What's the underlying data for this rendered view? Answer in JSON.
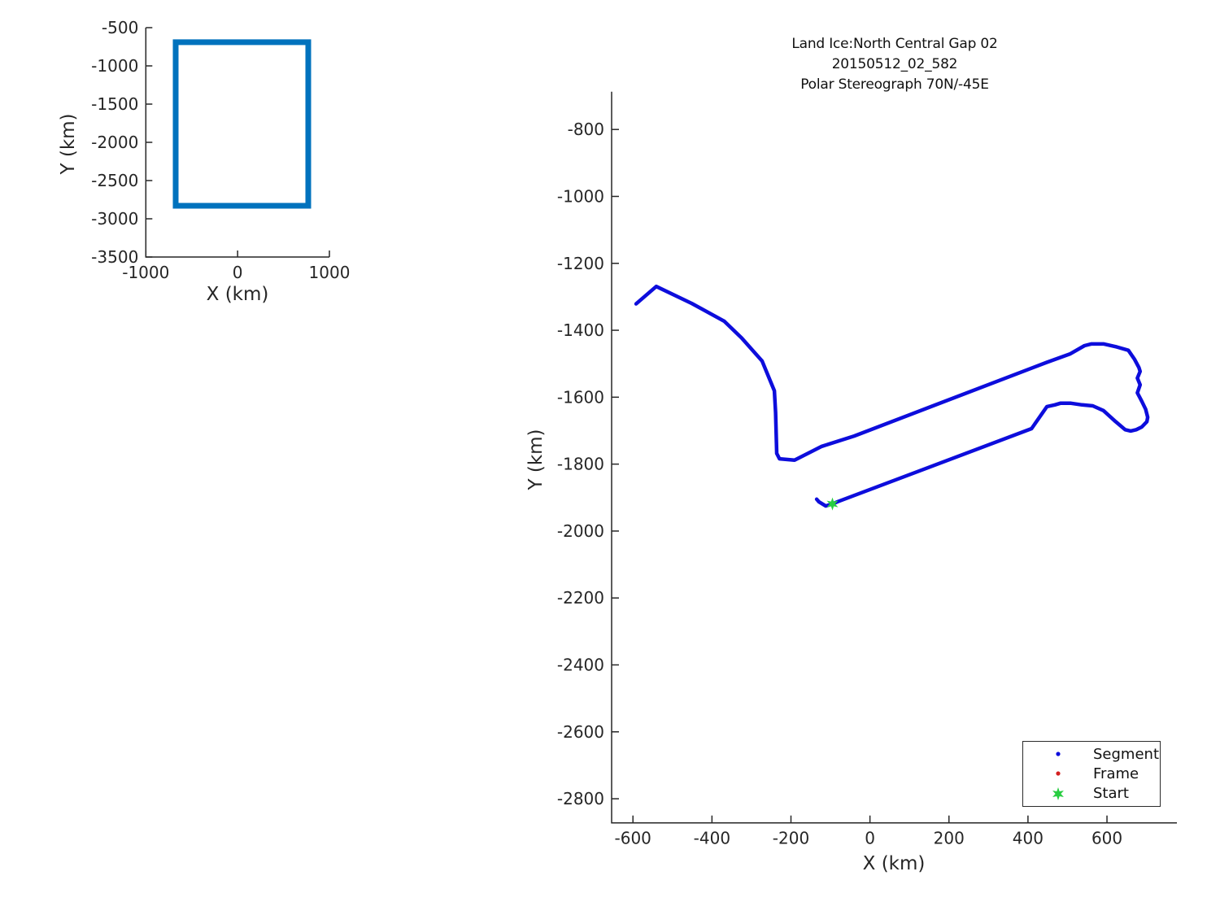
{
  "figure": {
    "background": "#ffffff",
    "spine_color": "#262626",
    "text_color": "#262626"
  },
  "chart_data": [
    {
      "id": "overview",
      "type": "line",
      "title": "",
      "xlabel": "X (km)",
      "ylabel": "Y (km)",
      "xlim": [
        -1000,
        1000
      ],
      "ylim": [
        -3500,
        -500
      ],
      "xticks": [
        -1000,
        0,
        1000
      ],
      "yticks": [
        -500,
        -1000,
        -1500,
        -2000,
        -2500,
        -3000,
        -3500
      ],
      "grid": false,
      "series": [
        {
          "name": "coverage-outline",
          "color": "#0072BD",
          "line_width": 7,
          "closed": true,
          "x": [
            -675,
            770,
            770,
            -675,
            -675
          ],
          "y": [
            -690,
            -690,
            -2830,
            -2830,
            -690
          ]
        }
      ]
    },
    {
      "id": "flightline",
      "type": "line",
      "title_lines": [
        "Land Ice:North Central Gap 02",
        "20150512_02_582",
        "Polar Stereograph 70N/-45E"
      ],
      "xlabel": "X (km)",
      "ylabel": "Y (km)",
      "xlim": [
        -654,
        777
      ],
      "ylim": [
        -2872,
        -687
      ],
      "xticks": [
        -600,
        -400,
        -200,
        0,
        200,
        400,
        600
      ],
      "yticks": [
        -800,
        -1000,
        -1200,
        -1400,
        -1600,
        -1800,
        -2000,
        -2200,
        -2400,
        -2600,
        -2800
      ],
      "grid": false,
      "series": [
        {
          "name": "segment-track",
          "legend": "Segment",
          "color": "#0D0DDC",
          "line_width": 4.5,
          "closed": false,
          "x": [
            -592,
            -541,
            -451,
            -369,
            -325,
            -273,
            -242,
            -239,
            -236,
            -229,
            -191,
            -122,
            -40,
            447,
            506,
            543,
            560,
            592,
            625,
            654,
            670,
            681,
            684,
            677,
            684,
            677,
            688,
            698,
            703,
            701,
            688,
            674,
            660,
            646,
            622,
            591,
            564,
            537,
            509,
            482,
            468,
            448,
            409,
            -81,
            -95,
            -112,
            -129,
            -135
          ],
          "y": [
            -1321,
            -1269,
            -1320,
            -1373,
            -1423,
            -1492,
            -1581,
            -1646,
            -1768,
            -1784,
            -1788,
            -1747,
            -1716,
            -1496,
            -1471,
            -1446,
            -1441,
            -1441,
            -1450,
            -1460,
            -1487,
            -1512,
            -1523,
            -1543,
            -1563,
            -1587,
            -1612,
            -1636,
            -1660,
            -1673,
            -1689,
            -1697,
            -1701,
            -1697,
            -1673,
            -1640,
            -1626,
            -1623,
            -1618,
            -1618,
            -1623,
            -1628,
            -1694,
            -1912,
            -1919,
            -1925,
            -1913,
            -1905
          ]
        }
      ],
      "start_marker": {
        "label": "Start",
        "marker": "hexagram",
        "x": -95,
        "y": -1919,
        "color": "#28CD41"
      },
      "legend": {
        "position": "southeast",
        "items": [
          {
            "label": "Segment",
            "marker": "dot",
            "color": "#0D0DDC"
          },
          {
            "label": "Frame",
            "marker": "dot",
            "color": "#D42020"
          },
          {
            "label": "Start",
            "marker": "hexagram",
            "color": "#28CD41"
          }
        ]
      }
    }
  ]
}
